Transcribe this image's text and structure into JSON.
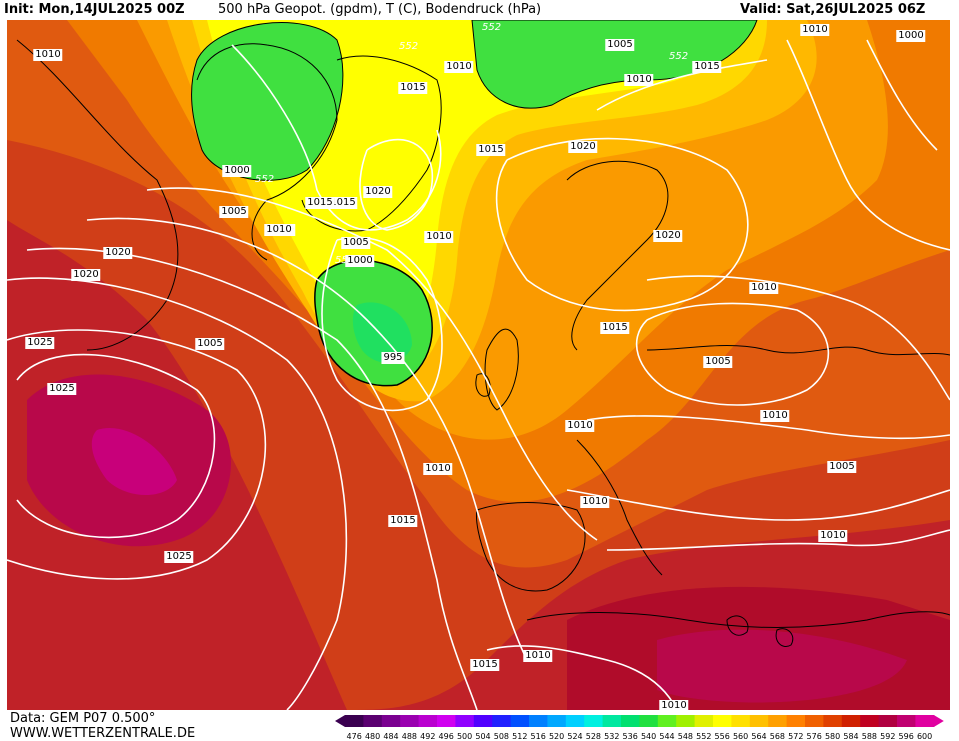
{
  "header": {
    "init": "Init: Mon,14JUL2025 00Z",
    "title": "500 hPa Geopot. (gpdm), T (C), Bodendruck (hPa)",
    "valid": "Valid: Sat,26JUL2025 06Z"
  },
  "footer": {
    "data_source": "Data: GEM P07 0.500°",
    "website": "WWW.WETTERZENTRALE.DE"
  },
  "legend": {
    "values": [
      "476",
      "480",
      "484",
      "488",
      "492",
      "496",
      "500",
      "504",
      "508",
      "512",
      "516",
      "520",
      "524",
      "528",
      "532",
      "536",
      "540",
      "544",
      "548",
      "552",
      "556",
      "560",
      "564",
      "568",
      "572",
      "576",
      "580",
      "584",
      "588",
      "592",
      "596",
      "600"
    ],
    "colors": [
      "#3a0050",
      "#5a0070",
      "#7a0090",
      "#9a00b0",
      "#ba00d0",
      "#d000f0",
      "#9000ff",
      "#5000ff",
      "#2020ff",
      "#0050ff",
      "#0080ff",
      "#00a8ff",
      "#00d0ff",
      "#00f0e0",
      "#00e8a0",
      "#00e070",
      "#20e040",
      "#60f020",
      "#a0f000",
      "#e0f000",
      "#ffff00",
      "#ffe000",
      "#ffc000",
      "#ffa000",
      "#ff8000",
      "#f06000",
      "#e04000",
      "#d02000",
      "#c00020",
      "#b00040",
      "#c00070",
      "#e000a0"
    ]
  },
  "map": {
    "colors": {
      "c560": "#ffff00",
      "c552": "#40e040",
      "c540": "#20e060",
      "c564": "#ffd800",
      "c568": "#ffb800",
      "c572": "#fa9a00",
      "c576": "#f07a00",
      "c580": "#e05a10",
      "c584": "#d03e18",
      "c588": "#c02228",
      "c592": "#b00c2a",
      "c596": "#b8084a",
      "c600": "#c8007a",
      "isobar": "#ffffff",
      "coast": "#000000"
    },
    "geopotential_labels": [
      "552",
      "552",
      "552",
      "552",
      "552"
    ],
    "isobar_labels": [
      "1010",
      "1000",
      "1005",
      "1010",
      "1005",
      "1010",
      "1015",
      "1015",
      "1020",
      "1010",
      "1015",
      "1020",
      "1005",
      "1010",
      "1020",
      "1020",
      "1000",
      "995",
      "1015",
      "1015",
      "1020",
      "1010",
      "1015",
      "1005",
      "1025",
      "1025",
      "1010",
      "1010",
      "1010",
      "1010",
      "1005",
      "1005",
      "1010",
      "1015",
      "1025",
      "1015",
      "1010",
      "1010",
      "1010",
      "1010",
      "1000"
    ]
  }
}
